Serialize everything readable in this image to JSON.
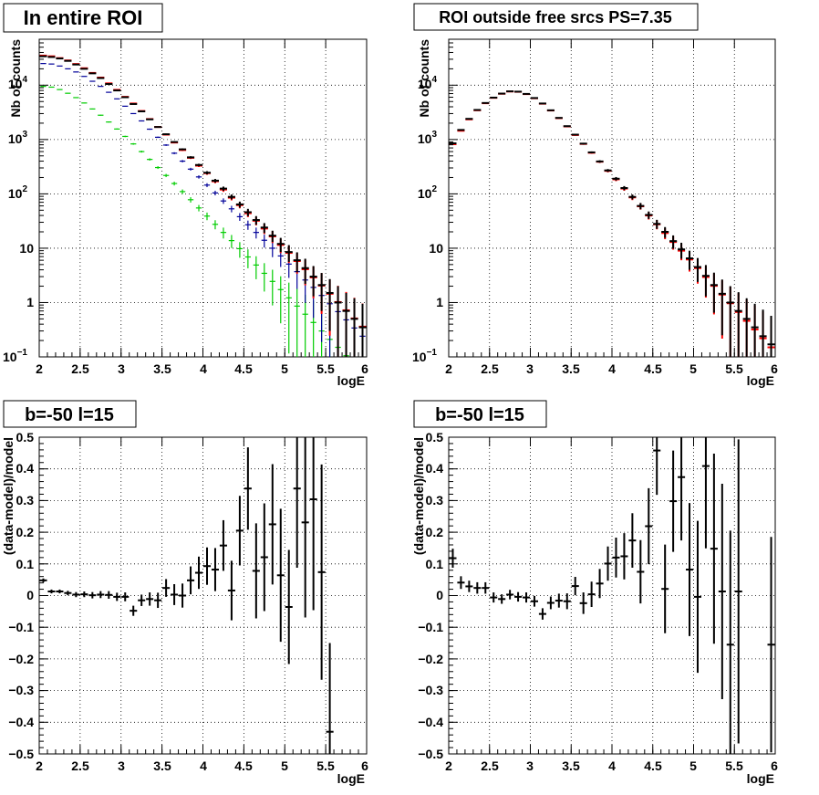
{
  "panels": [
    {
      "title": "In entire ROI",
      "xlabel": "logE",
      "ylabel": "Nb of counts",
      "tick_labels": {
        "x": [
          "2",
          "2.5",
          "3",
          "3.5",
          "4",
          "4.5",
          "5",
          "5.5",
          "6"
        ],
        "y": [
          "10",
          "1",
          "10",
          "10",
          "10",
          "10"
        ],
        "y_exponents": [
          "−1",
          "",
          "",
          "2",
          "3",
          "4"
        ]
      }
    },
    {
      "title": "ROI outside free srcs PS=7.35",
      "xlabel": "logE",
      "ylabel": "Nb of counts",
      "tick_labels": {
        "x": [
          "2",
          "2.5",
          "3",
          "3.5",
          "4",
          "4.5",
          "5",
          "5.5",
          "6"
        ],
        "y": [
          "10",
          "1",
          "10",
          "10",
          "10",
          "10"
        ],
        "y_exponents": [
          "−1",
          "",
          "",
          "2",
          "3",
          "4"
        ]
      }
    },
    {
      "title": "b=-50 l=15",
      "xlabel": "logE",
      "ylabel": "(data-model)/model",
      "tick_labels": {
        "x": [
          "2",
          "2.5",
          "3",
          "3.5",
          "4",
          "4.5",
          "5",
          "5.5",
          "6"
        ],
        "y": [
          "−0.5",
          "−0.4",
          "−0.3",
          "−0.2",
          "−0.1",
          "0",
          "0.1",
          "0.2",
          "0.3",
          "0.4",
          "0.5"
        ]
      }
    },
    {
      "title": "b=-50 l=15",
      "xlabel": "logE",
      "ylabel": "(data-model)/model",
      "tick_labels": {
        "x": [
          "2",
          "2.5",
          "3",
          "3.5",
          "4",
          "4.5",
          "5",
          "5.5",
          "6"
        ],
        "y": [
          "−0.5",
          "−0.4",
          "−0.3",
          "−0.2",
          "−0.1",
          "0",
          "0.1",
          "0.2",
          "0.3",
          "0.4",
          "0.5"
        ]
      }
    }
  ],
  "colors": {
    "data": "#000000",
    "model_total": "#ff0000",
    "model_blue": "#000099",
    "model_green": "#00cc00",
    "grid": "#000000"
  },
  "chart_data": [
    {
      "type": "scatter",
      "title": "In entire ROI",
      "xlabel": "logE",
      "ylabel": "Nb of counts",
      "log_y": true,
      "xlim": [
        2,
        6
      ],
      "ylim": [
        0.1,
        70000
      ],
      "grid": true,
      "x": [
        2.05,
        2.15,
        2.25,
        2.35,
        2.45,
        2.55,
        2.65,
        2.75,
        2.85,
        2.95,
        3.05,
        3.15,
        3.25,
        3.35,
        3.45,
        3.55,
        3.65,
        3.75,
        3.85,
        3.95,
        4.05,
        4.15,
        4.25,
        4.35,
        4.45,
        4.55,
        4.65,
        4.75,
        4.85,
        4.95,
        5.05,
        5.15,
        5.25,
        5.35,
        5.45,
        5.55,
        5.65,
        5.75,
        5.85,
        5.95
      ],
      "series": [
        {
          "style": "data",
          "values": [
            34000,
            33000,
            31000,
            28000,
            24000,
            20000,
            16500,
            13500,
            10500,
            8000,
            6000,
            4500,
            3300,
            2350,
            1700,
            1250,
            900,
            660,
            470,
            340,
            245,
            175,
            125,
            88,
            64,
            46,
            33,
            24,
            17,
            12,
            8.5,
            6,
            4.3,
            3,
            2.1,
            1.5,
            1,
            0.7,
            0.5,
            0.35
          ],
          "errors": [
            184,
            182,
            176,
            167,
            155,
            141,
            128,
            116,
            102,
            89,
            77,
            67,
            57,
            48,
            41,
            35,
            30,
            26,
            22,
            18,
            16,
            13,
            11,
            9,
            8,
            7,
            6,
            5,
            4,
            3.5,
            2.9,
            2.4,
            2.1,
            1.7,
            1.4,
            1.2,
            1,
            0.8,
            0.7,
            0.6
          ]
        },
        {
          "style": "model_total",
          "values": [
            35000,
            34000,
            31500,
            28500,
            24500,
            20500,
            16800,
            13800,
            10800,
            8200,
            6100,
            4600,
            3350,
            2380,
            1700,
            1230,
            880,
            640,
            460,
            330,
            240,
            170,
            120,
            85,
            62,
            44,
            32,
            23,
            16.5,
            11.5,
            8.2,
            5.8,
            4.1,
            2.9,
            2.05,
            1.45,
            1.02,
            0.72,
            0.51,
            0.36
          ]
        },
        {
          "style": "model_blue",
          "values": [
            25000,
            24500,
            22500,
            20000,
            17500,
            14500,
            11800,
            9500,
            7400,
            5600,
            4100,
            3000,
            2200,
            1550,
            1100,
            790,
            560,
            400,
            285,
            205,
            145,
            104,
            74,
            53,
            38,
            27,
            19.5,
            14,
            10,
            7.2,
            5.1,
            3.7,
            2.6,
            1.9,
            1.35,
            0.95,
            0.68,
            0.48,
            0.34,
            0.24
          ]
        },
        {
          "style": "model_green",
          "values": [
            9500,
            9200,
            8300,
            7100,
            5900,
            4700,
            3650,
            2800,
            2100,
            1560,
            1140,
            830,
            600,
            430,
            305,
            218,
            155,
            110,
            78,
            55,
            39,
            27.5,
            19.5,
            13.8,
            9.8,
            6.9,
            4.9,
            3.45,
            2.45,
            1.73,
            1.22,
            0.86,
            0.61,
            0.43,
            0.3,
            0.21,
            0.15,
            0.105,
            0.075,
            0.053
          ]
        }
      ]
    },
    {
      "type": "scatter",
      "title": "ROI outside free srcs PS=7.35",
      "xlabel": "logE",
      "ylabel": "Nb of counts",
      "log_y": true,
      "xlim": [
        2,
        6
      ],
      "ylim": [
        0.1,
        70000
      ],
      "grid": true,
      "x": [
        2.05,
        2.15,
        2.25,
        2.35,
        2.45,
        2.55,
        2.65,
        2.75,
        2.85,
        2.95,
        3.05,
        3.15,
        3.25,
        3.35,
        3.45,
        3.55,
        3.65,
        3.75,
        3.85,
        3.95,
        4.05,
        4.15,
        4.25,
        4.35,
        4.45,
        4.55,
        4.65,
        4.75,
        4.85,
        4.95,
        5.05,
        5.15,
        5.25,
        5.35,
        5.45,
        5.55,
        5.65,
        5.75,
        5.85,
        5.95
      ],
      "series": [
        {
          "style": "data",
          "values": [
            850,
            1500,
            2400,
            3500,
            4700,
            5900,
            7000,
            7700,
            7600,
            6900,
            5800,
            4600,
            3450,
            2500,
            1760,
            1230,
            840,
            580,
            395,
            270,
            190,
            128,
            88,
            60,
            41,
            28,
            20,
            13.5,
            9.5,
            6.5,
            4.5,
            3.1,
            2.1,
            1.45,
            1,
            0.7,
            0.5,
            0.35,
            0.24,
            0.17
          ],
          "errors": [
            29,
            39,
            49,
            59,
            69,
            77,
            84,
            88,
            87,
            83,
            76,
            68,
            59,
            50,
            42,
            35,
            29,
            24,
            20,
            16,
            14,
            11,
            9,
            8,
            6.4,
            5.3,
            4.5,
            3.7,
            3.1,
            2.5,
            2.1,
            1.8,
            1.45,
            1.2,
            1,
            0.85,
            0.7,
            0.6,
            0.5,
            0.4
          ]
        },
        {
          "style": "model_total",
          "values": [
            820,
            1450,
            2350,
            3450,
            4650,
            5850,
            6950,
            7650,
            7550,
            6850,
            5750,
            4560,
            3420,
            2470,
            1740,
            1210,
            830,
            570,
            390,
            265,
            185,
            125,
            86,
            59,
            40,
            27.5,
            19,
            13,
            9,
            6.2,
            4.3,
            2.95,
            2.03,
            1.4,
            0.97,
            0.67,
            0.46,
            0.32,
            0.22,
            0.15
          ]
        }
      ]
    },
    {
      "type": "scatter",
      "title": "b=-50 l=15",
      "xlabel": "logE",
      "ylabel": "(data-model)/model",
      "xlim": [
        2,
        6
      ],
      "ylim": [
        -0.5,
        0.5
      ],
      "grid": true,
      "x": [
        2.05,
        2.15,
        2.25,
        2.35,
        2.45,
        2.55,
        2.65,
        2.75,
        2.85,
        2.95,
        3.05,
        3.15,
        3.25,
        3.35,
        3.45,
        3.55,
        3.65,
        3.75,
        3.85,
        3.95,
        4.05,
        4.15,
        4.25,
        4.35,
        4.45,
        4.55,
        4.65,
        4.75,
        4.85,
        4.95,
        5.05,
        5.15,
        5.25,
        5.35,
        5.45,
        5.55
      ],
      "values": [
        0.048,
        0.013,
        0.013,
        0.008,
        0.003,
        0.004,
        0.001,
        0.003,
        0.002,
        -0.004,
        -0.004,
        -0.048,
        -0.015,
        -0.011,
        -0.015,
        0.024,
        0.003,
        0.0,
        0.048,
        0.072,
        0.093,
        0.082,
        0.158,
        0.016,
        0.205,
        0.338,
        0.078,
        0.121,
        0.225,
        0.064,
        -0.036,
        0.338,
        0.231,
        0.304,
        0.074,
        -0.43
      ],
      "errors": [
        0.006,
        0.006,
        0.006,
        0.007,
        0.008,
        0.009,
        0.01,
        0.011,
        0.012,
        0.013,
        0.014,
        0.016,
        0.018,
        0.021,
        0.024,
        0.028,
        0.033,
        0.038,
        0.044,
        0.051,
        0.059,
        0.068,
        0.08,
        0.094,
        0.11,
        0.13,
        0.15,
        0.17,
        0.19,
        0.21,
        0.18,
        0.25,
        0.3,
        0.35,
        0.34,
        0.28
      ]
    },
    {
      "type": "scatter",
      "title": "b=-50 l=15",
      "xlabel": "logE",
      "ylabel": "(data-model)/model",
      "xlim": [
        2,
        6
      ],
      "ylim": [
        -0.5,
        0.5
      ],
      "grid": true,
      "x": [
        2.05,
        2.15,
        2.25,
        2.35,
        2.45,
        2.55,
        2.65,
        2.75,
        2.85,
        2.95,
        3.05,
        3.15,
        3.25,
        3.35,
        3.45,
        3.55,
        3.65,
        3.75,
        3.85,
        3.95,
        4.05,
        4.15,
        4.25,
        4.35,
        4.45,
        4.55,
        4.65,
        4.75,
        4.85,
        4.95,
        5.05,
        5.15,
        5.25,
        5.35,
        5.45,
        5.55,
        5.95
      ],
      "values": [
        0.118,
        0.041,
        0.029,
        0.024,
        0.024,
        -0.006,
        -0.011,
        0.003,
        -0.004,
        -0.006,
        -0.018,
        -0.058,
        -0.023,
        -0.016,
        -0.018,
        0.03,
        -0.024,
        0.004,
        0.038,
        0.101,
        0.12,
        0.124,
        0.174,
        0.075,
        0.219,
        0.458,
        0.021,
        0.298,
        0.374,
        0.082,
        -0.004,
        0.409,
        0.148,
        0.013,
        -0.155,
        0.013,
        -0.155
      ],
      "errors": [
        0.03,
        0.02,
        0.018,
        0.018,
        0.018,
        0.016,
        0.015,
        0.015,
        0.015,
        0.016,
        0.017,
        0.018,
        0.02,
        0.022,
        0.025,
        0.029,
        0.034,
        0.04,
        0.046,
        0.054,
        0.063,
        0.073,
        0.086,
        0.1,
        0.12,
        0.14,
        0.14,
        0.16,
        0.2,
        0.21,
        0.24,
        0.26,
        0.3,
        0.34,
        0.36,
        0.48,
        0.34
      ]
    }
  ]
}
